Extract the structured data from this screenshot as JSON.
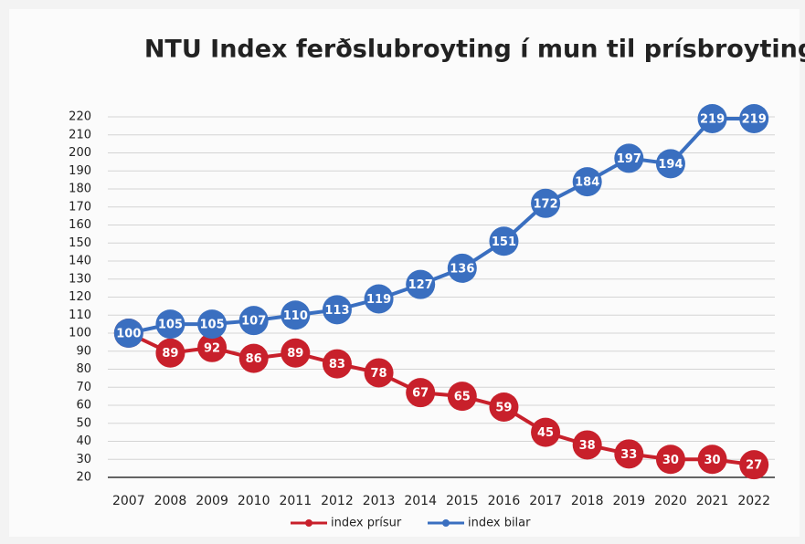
{
  "chart_data": {
    "type": "line",
    "title": "NTU Index ferðslubroyting í mun til prísbroyting",
    "categories": [
      "2007",
      "2008",
      "2009",
      "2010",
      "2011",
      "2012",
      "2013",
      "2014",
      "2015",
      "2016",
      "2017",
      "2018",
      "2019",
      "2020",
      "2021",
      "2022"
    ],
    "series": [
      {
        "name": "index prísur",
        "color": "#c8202b",
        "values": [
          100,
          89,
          92,
          86,
          89,
          83,
          78,
          67,
          65,
          59,
          45,
          38,
          33,
          30,
          30,
          27
        ]
      },
      {
        "name": "index bilar",
        "color": "#3a6fc0",
        "values": [
          100,
          105,
          105,
          107,
          110,
          113,
          119,
          127,
          136,
          151,
          172,
          184,
          197,
          194,
          219,
          219
        ]
      }
    ],
    "ylim": [
      20,
      220
    ],
    "yticks": [
      20,
      30,
      40,
      50,
      60,
      70,
      80,
      90,
      100,
      110,
      120,
      130,
      140,
      150,
      160,
      170,
      180,
      190,
      200,
      210,
      220
    ],
    "grid": true,
    "legend": "bottom"
  }
}
